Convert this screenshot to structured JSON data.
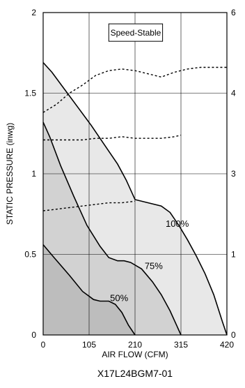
{
  "chart_data": {
    "type": "area",
    "xlabel": "AIR FLOW (CFM)",
    "ylabel": "STATIC PRESSURE (inwg)",
    "caption": "X17L24BGM7-01",
    "legend_box": "Speed-Stable",
    "xlim": [
      0,
      420
    ],
    "ylim": [
      0,
      2
    ],
    "xticks": [
      "0",
      "105",
      "210",
      "315",
      "420"
    ],
    "yticks": [
      "0",
      "0.5",
      "1",
      "1.5",
      "2"
    ],
    "right_ticks": [
      "0",
      "1",
      "3",
      "4",
      "6"
    ],
    "grid": true,
    "series": [
      {
        "name": "100%",
        "kind": "fan-curve",
        "fill": "#e8e8e8",
        "x": [
          0,
          20,
          50,
          80,
          110,
          140,
          170,
          190,
          210,
          240,
          270,
          290,
          310,
          330,
          350,
          370,
          390,
          410,
          420
        ],
        "y": [
          1.69,
          1.63,
          1.52,
          1.41,
          1.3,
          1.18,
          1.06,
          0.96,
          0.84,
          0.82,
          0.8,
          0.76,
          0.68,
          0.59,
          0.49,
          0.38,
          0.25,
          0.08,
          0
        ]
      },
      {
        "name": "75%",
        "kind": "fan-curve",
        "fill": "#d2d2d2",
        "x": [
          0,
          15,
          40,
          70,
          100,
          130,
          150,
          170,
          185,
          200,
          225,
          250,
          270,
          290,
          305,
          315
        ],
        "y": [
          1.32,
          1.23,
          1.05,
          0.86,
          0.68,
          0.55,
          0.48,
          0.46,
          0.46,
          0.45,
          0.41,
          0.33,
          0.25,
          0.15,
          0.06,
          0
        ]
      },
      {
        "name": "50%",
        "kind": "fan-curve",
        "fill": "#bdbdbd",
        "x": [
          0,
          25,
          60,
          90,
          115,
          130,
          150,
          165,
          180,
          195,
          210
        ],
        "y": [
          0.56,
          0.48,
          0.37,
          0.27,
          0.22,
          0.21,
          0.21,
          0.19,
          0.14,
          0.06,
          0
        ]
      },
      {
        "kind": "power",
        "x": [
          0,
          30,
          60,
          90,
          120,
          150,
          180,
          210,
          240,
          270,
          300,
          330,
          360,
          390,
          420
        ],
        "y": [
          1.38,
          1.43,
          1.5,
          1.55,
          1.61,
          1.64,
          1.65,
          1.64,
          1.62,
          1.6,
          1.63,
          1.65,
          1.66,
          1.66,
          1.66
        ]
      },
      {
        "kind": "power",
        "x": [
          0,
          30,
          60,
          90,
          120,
          150,
          180,
          210,
          240,
          270,
          300,
          315
        ],
        "y": [
          1.21,
          1.21,
          1.21,
          1.21,
          1.22,
          1.22,
          1.23,
          1.22,
          1.22,
          1.22,
          1.23,
          1.24
        ]
      },
      {
        "kind": "power",
        "x": [
          0,
          30,
          60,
          90,
          120,
          150,
          180,
          210
        ],
        "y": [
          0.77,
          0.78,
          0.79,
          0.8,
          0.81,
          0.82,
          0.82,
          0.83
        ]
      }
    ],
    "labels": [
      {
        "text": "100%",
        "x": 280,
        "y": 0.67
      },
      {
        "text": "75%",
        "x": 232,
        "y": 0.41
      },
      {
        "text": "50%",
        "x": 153,
        "y": 0.21
      }
    ]
  }
}
